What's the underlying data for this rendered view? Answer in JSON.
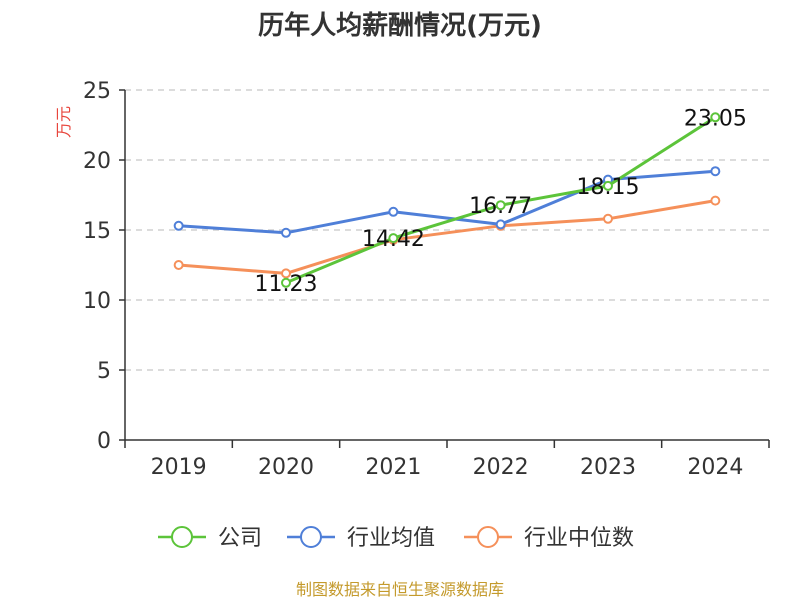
{
  "chart_data": {
    "type": "line",
    "title": "历年人均薪酬情况(万元)",
    "ylabel": "万元",
    "xlabel": "",
    "ylim": [
      0,
      25
    ],
    "yticks": [
      0,
      5,
      10,
      15,
      20,
      25
    ],
    "grid": true,
    "legend_position": "bottom",
    "categories": [
      "2019",
      "2020",
      "2021",
      "2022",
      "2023",
      "2024"
    ],
    "series": [
      {
        "name": "公司",
        "color": "#5cc43a",
        "values": [
          null,
          11.23,
          14.42,
          16.77,
          18.15,
          23.05
        ],
        "labels": [
          "",
          "11.23",
          "14.42",
          "16.77",
          "18.15",
          "23.05"
        ]
      },
      {
        "name": "行业均值",
        "color": "#4f7fd8",
        "values": [
          15.3,
          14.8,
          16.3,
          15.4,
          18.6,
          19.2
        ],
        "labels": [
          "",
          "",
          "",
          "",
          "",
          ""
        ]
      },
      {
        "name": "行业中位数",
        "color": "#f5905a",
        "values": [
          12.5,
          11.9,
          14.3,
          15.3,
          15.8,
          17.1
        ],
        "labels": [
          "",
          "",
          "",
          "",
          "",
          ""
        ]
      }
    ]
  },
  "footer": {
    "source": "制图数据来自恒生聚源数据库"
  }
}
